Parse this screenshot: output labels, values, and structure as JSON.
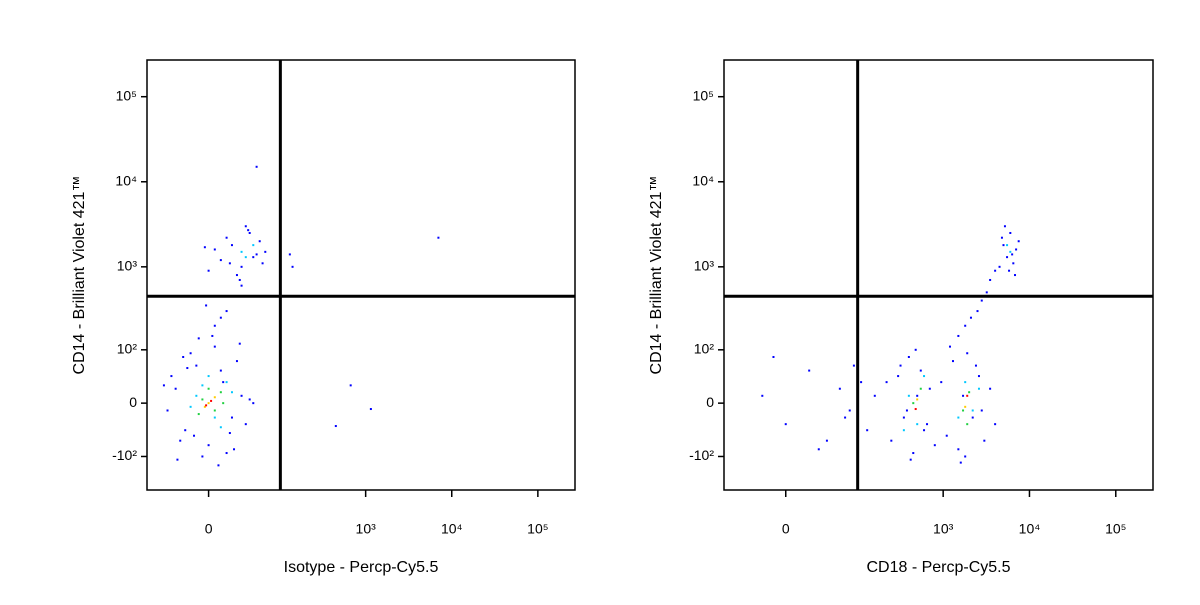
{
  "chart_data": [
    {
      "type": "scatter",
      "xlabel": "Isotype - Percp-Cy5.5",
      "ylabel": "CD14 - Brilliant Violet 421™",
      "xscale": "biexponential",
      "yscale": "biexponential",
      "xlim": [
        -75,
        270000
      ],
      "ylim": [
        -260,
        270000
      ],
      "xticks": [
        {
          "value": 0,
          "label": "0"
        },
        {
          "value": 1000,
          "label": "10³"
        },
        {
          "value": 10000,
          "label": "10⁴"
        },
        {
          "value": 100000,
          "label": "10⁵"
        }
      ],
      "yticks": [
        {
          "value": -100,
          "label": "-10²"
        },
        {
          "value": 0,
          "label": "0"
        },
        {
          "value": 100,
          "label": "10²"
        },
        {
          "value": 1000,
          "label": "10³"
        },
        {
          "value": 10000,
          "label": "10⁴"
        },
        {
          "value": 100000,
          "label": "10⁵"
        }
      ],
      "gates": {
        "x": 100,
        "y": 450
      },
      "series": [
        {
          "color": "#0000ff",
          "x": [
            -30,
            -20,
            -10,
            0,
            10,
            20,
            30,
            -35,
            35,
            -25,
            25,
            -15,
            15,
            -5,
            5,
            40,
            -40,
            12,
            -12,
            22,
            -22,
            28,
            -28,
            8,
            -8,
            45,
            -45,
            18,
            -18,
            3,
            0,
            10,
            20,
            30,
            40,
            50,
            60,
            5,
            15,
            25,
            35,
            45,
            55,
            -3,
            65,
            28,
            38,
            18,
            5,
            15,
            25,
            -2,
            30,
            10,
            50,
            7000,
            670,
            1150,
            450,
            130,
            140
          ],
          "y": [
            20,
            -40,
            60,
            -70,
            50,
            -20,
            10,
            40,
            -30,
            -60,
            70,
            90,
            -90,
            -100,
            110,
            5,
            -10,
            30,
            -50,
            -80,
            80,
            120,
            -110,
            -130,
            140,
            0,
            25,
            -45,
            55,
            150,
            900,
            1200,
            1800,
            1000,
            2500,
            1400,
            1100,
            1600,
            2200,
            800,
            3000,
            1300,
            2000,
            1700,
            1500,
            700,
            2700,
            1100,
            200,
            300,
            450,
            350,
            600,
            250,
            15000,
            2200,
            25,
            -8,
            -33,
            1400,
            1000
          ]
        },
        {
          "color": "#00c8ff",
          "x": [
            -10,
            5,
            15,
            -15,
            20,
            0,
            10,
            -5,
            30,
            35,
            45
          ],
          "y": [
            10,
            -20,
            30,
            -5,
            15,
            40,
            -35,
            25,
            1500,
            1300,
            1800
          ]
        },
        {
          "color": "#20d040",
          "x": [
            -5,
            5,
            10,
            0,
            -8,
            12
          ],
          "y": [
            5,
            -10,
            15,
            20,
            -15,
            0
          ]
        },
        {
          "color": "#ffcc00",
          "x": [
            0,
            5,
            -3
          ],
          "y": [
            0,
            8,
            -5
          ]
        },
        {
          "color": "#ff0000",
          "x": [
            2,
            -2
          ],
          "y": [
            3,
            -3
          ]
        }
      ]
    },
    {
      "type": "scatter",
      "xlabel": "CD18 - Percp-Cy5.5",
      "ylabel": "CD14 - Brilliant Violet 421™",
      "xscale": "biexponential",
      "yscale": "biexponential",
      "xlim": [
        -75,
        270000
      ],
      "ylim": [
        -260,
        270000
      ],
      "xticks": [
        {
          "value": 0,
          "label": "0"
        },
        {
          "value": 1000,
          "label": "10³"
        },
        {
          "value": 10000,
          "label": "10⁴"
        },
        {
          "value": 100000,
          "label": "10⁵"
        }
      ],
      "yticks": [
        {
          "value": -100,
          "label": "-10²"
        },
        {
          "value": 0,
          "label": "0"
        },
        {
          "value": 100,
          "label": "10²"
        },
        {
          "value": 1000,
          "label": "10³"
        },
        {
          "value": 10000,
          "label": "10⁴"
        },
        {
          "value": 100000,
          "label": "10⁵"
        }
      ],
      "gates": {
        "x": 100,
        "y": 450
      },
      "series": [
        {
          "color": "#0000ff",
          "x": [
            250,
            300,
            350,
            400,
            450,
            500,
            550,
            600,
            700,
            800,
            220,
            380,
            480,
            650,
            320,
            420,
            950,
            1100,
            1300,
            1500,
            1700,
            1900,
            2200,
            2600,
            3000,
            3500,
            4000,
            1200,
            1800,
            2400,
            2800,
            1600,
            4500,
            5000,
            5500,
            6000,
            6500,
            7000,
            7500,
            5200,
            5800,
            6300,
            4800,
            6800,
            1500,
            1800,
            2100,
            2500,
            2800,
            3200,
            3500,
            4000,
            -20,
            0,
            20,
            40,
            60,
            80,
            100,
            -10,
            30,
            70,
            90,
            110,
            130,
            160
          ],
          "y": [
            -60,
            40,
            -20,
            80,
            -90,
            10,
            50,
            -40,
            20,
            -70,
            30,
            -10,
            100,
            -30,
            60,
            -110,
            30,
            -50,
            70,
            -80,
            10,
            90,
            -20,
            40,
            -60,
            20,
            -30,
            110,
            -100,
            60,
            -10,
            -120,
            1000,
            1800,
            1300,
            2500,
            1100,
            1600,
            2000,
            3000,
            900,
            1400,
            2200,
            800,
            150,
            200,
            250,
            300,
            400,
            500,
            700,
            900,
            10,
            -30,
            50,
            -60,
            20,
            -10,
            40,
            80,
            -80,
            -20,
            60,
            30,
            -40,
            10
          ]
        },
        {
          "color": "#00c8ff",
          "x": [
            400,
            500,
            600,
            1500,
            1800,
            2200,
            350,
            2600,
            6000,
            5500
          ],
          "y": [
            10,
            -30,
            40,
            -20,
            30,
            -10,
            -40,
            20,
            1500,
            1800
          ]
        },
        {
          "color": "#20d040",
          "x": [
            450,
            550,
            1700,
            2000,
            1900
          ],
          "y": [
            0,
            20,
            -10,
            15,
            -30
          ]
        },
        {
          "color": "#ffcc00",
          "x": [
            500,
            1800
          ],
          "y": [
            5,
            -5
          ]
        },
        {
          "color": "#ff0000",
          "x": [
            480,
            1900
          ],
          "y": [
            -8,
            10
          ]
        }
      ]
    }
  ]
}
